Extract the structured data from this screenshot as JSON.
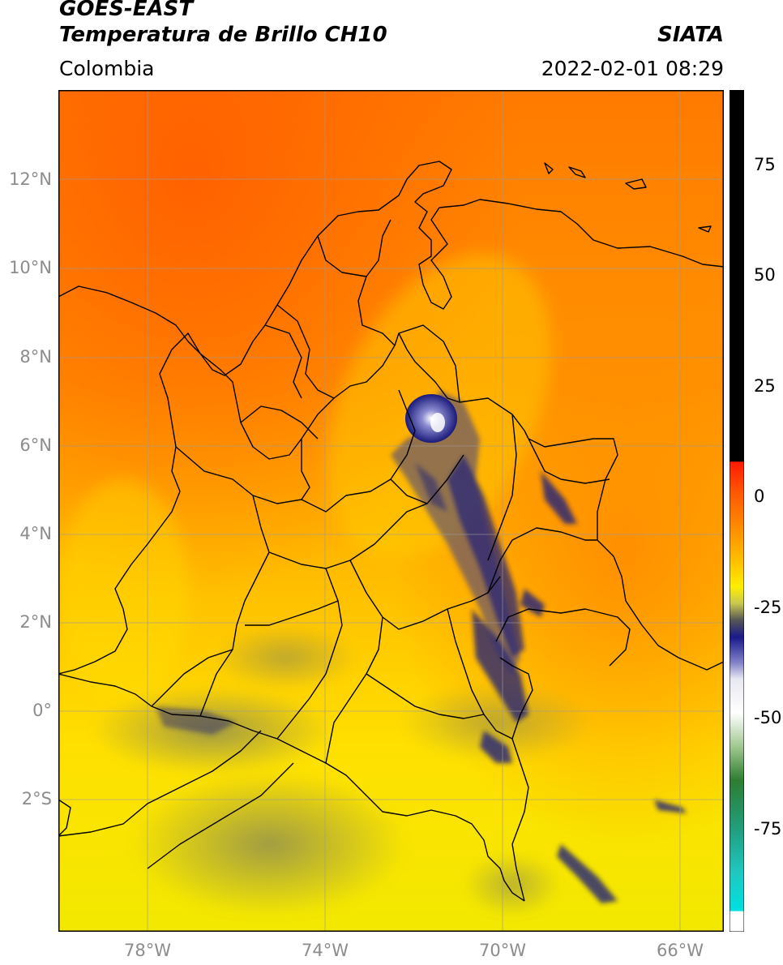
{
  "header": {
    "satellite": "GOES-EAST",
    "product": "Temperatura de Brillo CH10",
    "region": "Colombia",
    "organization": "SIATA",
    "datetime": "2022-02-01 08:29"
  },
  "map": {
    "lat_labels": [
      "12°N",
      "10°N",
      "8°N",
      "6°N",
      "4°N",
      "2°N",
      "0°",
      "2°S"
    ],
    "lon_labels": [
      "78°W",
      "74°W",
      "70°W",
      "66°W"
    ],
    "lat_range": [
      -4.5,
      14.0
    ],
    "lon_range": [
      -80.0,
      -65.0
    ],
    "colors": {
      "warm_orange": "#ff8c00",
      "yellow": "#ffe600",
      "deep_blue": "#1a1a7a",
      "boundary": "#000000",
      "grid": "#9a9a9a"
    }
  },
  "colorbar": {
    "ticks": [
      "75",
      "50",
      "25",
      "0",
      "-25",
      "-50",
      "-75"
    ],
    "range": [
      -95,
      90
    ]
  }
}
